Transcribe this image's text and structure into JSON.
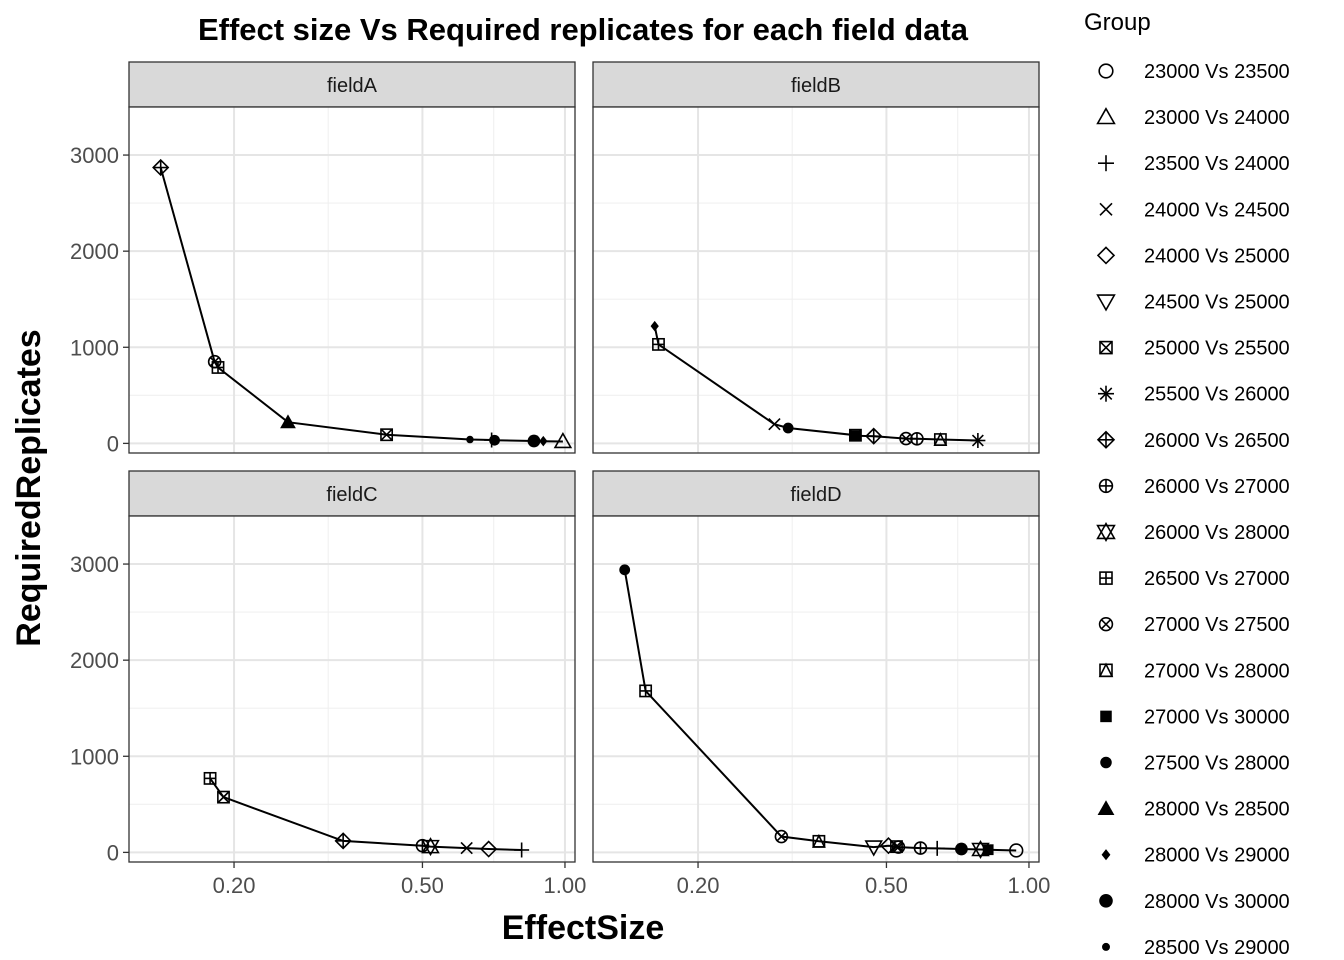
{
  "chart_data": {
    "type": "scatter",
    "title": "Effect size Vs Required replicates for each field data",
    "xlabel": "EffectSize",
    "ylabel": "RequiredReplicates",
    "x_scale": "log10",
    "xlim": [
      0.12,
      1.05
    ],
    "ylim": [
      -100,
      3500
    ],
    "x_ticks": [
      0.2,
      0.5,
      1.0
    ],
    "x_tick_labels": [
      "0.20",
      "0.50",
      "1.00"
    ],
    "y_ticks": [
      0,
      1000,
      2000,
      3000
    ],
    "y_tick_labels": [
      "0",
      "1000",
      "2000",
      "3000"
    ],
    "grid": true,
    "legend": {
      "title": "Group",
      "position": "right",
      "entries": [
        {
          "label": "23000 Vs 23500",
          "shape": "circle-open"
        },
        {
          "label": "23000 Vs 24000",
          "shape": "triangle-open"
        },
        {
          "label": "23500 Vs 24000",
          "shape": "plus"
        },
        {
          "label": "24000 Vs 24500",
          "shape": "cross"
        },
        {
          "label": "24000 Vs 25000",
          "shape": "diamond-open"
        },
        {
          "label": "24500 Vs 25000",
          "shape": "triangle-down-open"
        },
        {
          "label": "25000 Vs 25500",
          "shape": "square-cross"
        },
        {
          "label": "25500 Vs 26000",
          "shape": "asterisk"
        },
        {
          "label": "26000 Vs 26500",
          "shape": "diamond-plus"
        },
        {
          "label": "26000 Vs 27000",
          "shape": "circle-plus"
        },
        {
          "label": "26000 Vs 28000",
          "shape": "triangle-up-down"
        },
        {
          "label": "26500 Vs 27000",
          "shape": "square-plus"
        },
        {
          "label": "27000 Vs 27500",
          "shape": "circle-cross"
        },
        {
          "label": "27000 Vs 28000",
          "shape": "square-triangle"
        },
        {
          "label": "27000 Vs 30000",
          "shape": "square-filled"
        },
        {
          "label": "27500 Vs 28000",
          "shape": "circle-filled"
        },
        {
          "label": "28000 Vs 28500",
          "shape": "triangle-filled"
        },
        {
          "label": "28000 Vs 29000",
          "shape": "diamond-filled"
        },
        {
          "label": "28000 Vs 30000",
          "shape": "circle-filled-large"
        },
        {
          "label": "28500 Vs 29000",
          "shape": "circle-filled-small"
        }
      ]
    },
    "facets": [
      {
        "name": "fieldA",
        "points": [
          {
            "x": 0.14,
            "y": 2870,
            "group": "26000 Vs 26500"
          },
          {
            "x": 0.182,
            "y": 850,
            "group": "27000 Vs 27500"
          },
          {
            "x": 0.185,
            "y": 790,
            "group": "26500 Vs 27000"
          },
          {
            "x": 0.26,
            "y": 220,
            "group": "28000 Vs 28500"
          },
          {
            "x": 0.42,
            "y": 90,
            "group": "25000 Vs 25500"
          },
          {
            "x": 0.63,
            "y": 40,
            "group": "28500 Vs 29000"
          },
          {
            "x": 0.7,
            "y": 35,
            "group": "23500 Vs 24000"
          },
          {
            "x": 0.71,
            "y": 33,
            "group": "27500 Vs 28000"
          },
          {
            "x": 0.86,
            "y": 25,
            "group": "28000 Vs 30000"
          },
          {
            "x": 0.9,
            "y": 23,
            "group": "28000 Vs 29000"
          },
          {
            "x": 0.99,
            "y": 20,
            "group": "23000 Vs 24000"
          }
        ]
      },
      {
        "name": "fieldB",
        "points": [
          {
            "x": 0.162,
            "y": 1220,
            "group": "28000 Vs 29000"
          },
          {
            "x": 0.165,
            "y": 1030,
            "group": "26500 Vs 27000"
          },
          {
            "x": 0.29,
            "y": 200,
            "group": "24000 Vs 24500"
          },
          {
            "x": 0.31,
            "y": 160,
            "group": "27500 Vs 28000"
          },
          {
            "x": 0.43,
            "y": 85,
            "group": "25000 Vs 25500"
          },
          {
            "x": 0.43,
            "y": 80,
            "group": "27000 Vs 30000"
          },
          {
            "x": 0.47,
            "y": 75,
            "group": "26000 Vs 26500"
          },
          {
            "x": 0.55,
            "y": 50,
            "group": "27000 Vs 27500"
          },
          {
            "x": 0.58,
            "y": 48,
            "group": "26000 Vs 27000"
          },
          {
            "x": 0.65,
            "y": 40,
            "group": "27000 Vs 28000"
          },
          {
            "x": 0.78,
            "y": 30,
            "group": "25500 Vs 26000"
          }
        ]
      },
      {
        "name": "fieldC",
        "points": [
          {
            "x": 0.178,
            "y": 770,
            "group": "26500 Vs 27000"
          },
          {
            "x": 0.19,
            "y": 575,
            "group": "25000 Vs 25500"
          },
          {
            "x": 0.34,
            "y": 120,
            "group": "26000 Vs 26500"
          },
          {
            "x": 0.5,
            "y": 70,
            "group": "26000 Vs 27000"
          },
          {
            "x": 0.52,
            "y": 60,
            "group": "26000 Vs 28000"
          },
          {
            "x": 0.62,
            "y": 45,
            "group": "24000 Vs 24500"
          },
          {
            "x": 0.69,
            "y": 35,
            "group": "24000 Vs 25000"
          },
          {
            "x": 0.81,
            "y": 25,
            "group": "23500 Vs 24000"
          }
        ]
      },
      {
        "name": "fieldD",
        "points": [
          {
            "x": 0.14,
            "y": 2940,
            "group": "27500 Vs 28000"
          },
          {
            "x": 0.155,
            "y": 1680,
            "group": "26500 Vs 27000"
          },
          {
            "x": 0.3,
            "y": 165,
            "group": "27000 Vs 27500"
          },
          {
            "x": 0.36,
            "y": 115,
            "group": "27000 Vs 28000"
          },
          {
            "x": 0.47,
            "y": 55,
            "group": "24500 Vs 25000"
          },
          {
            "x": 0.505,
            "y": 70,
            "group": "24000 Vs 25000"
          },
          {
            "x": 0.525,
            "y": 60,
            "group": "25000 Vs 25500"
          },
          {
            "x": 0.53,
            "y": 55,
            "group": "27000 Vs 27500"
          },
          {
            "x": 0.59,
            "y": 45,
            "group": "26000 Vs 27000"
          },
          {
            "x": 0.64,
            "y": 42,
            "group": "23500 Vs 24000"
          },
          {
            "x": 0.72,
            "y": 35,
            "group": "28000 Vs 30000"
          },
          {
            "x": 0.79,
            "y": 30,
            "group": "26000 Vs 28000"
          },
          {
            "x": 0.82,
            "y": 28,
            "group": "27000 Vs 30000"
          },
          {
            "x": 0.94,
            "y": 20,
            "group": "23000 Vs 23500"
          }
        ]
      }
    ]
  }
}
